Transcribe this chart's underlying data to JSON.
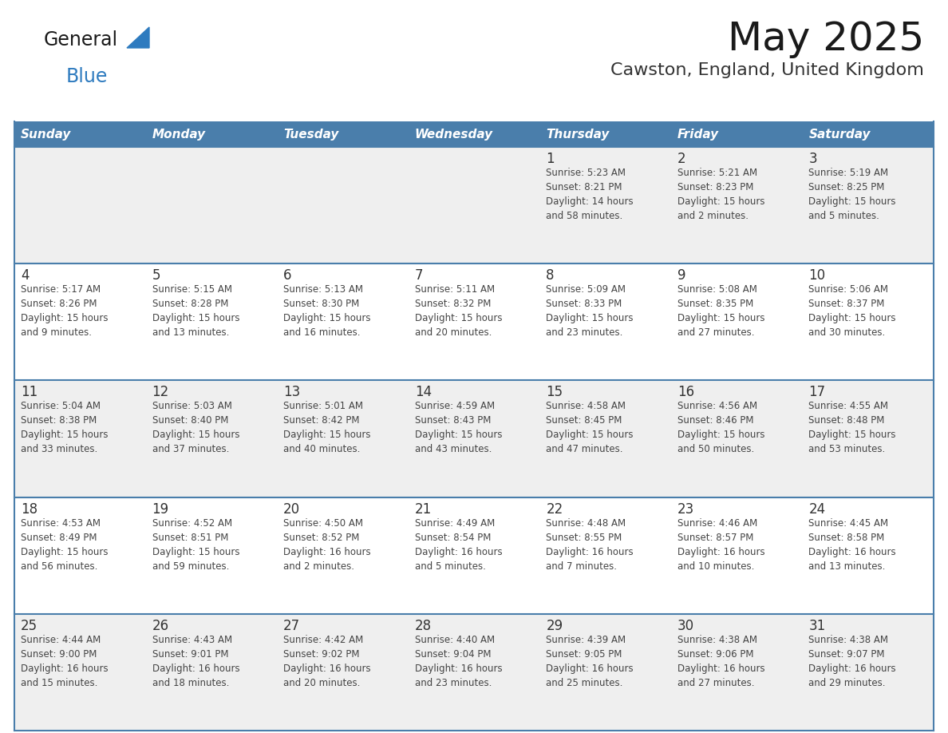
{
  "title": "May 2025",
  "subtitle": "Cawston, England, United Kingdom",
  "days_of_week": [
    "Sunday",
    "Monday",
    "Tuesday",
    "Wednesday",
    "Thursday",
    "Friday",
    "Saturday"
  ],
  "header_bg": "#4a7eab",
  "header_text_color": "#ffffff",
  "row_bg_odd": "#efefef",
  "row_bg_even": "#ffffff",
  "row_line_color": "#4a7eab",
  "day_number_color": "#333333",
  "cell_text_color": "#444444",
  "title_color": "#1a1a1a",
  "subtitle_color": "#333333",
  "logo_general_color": "#1a1a1a",
  "logo_blue_color": "#2e7bbf",
  "weeks": [
    [
      {
        "day": "",
        "info": ""
      },
      {
        "day": "",
        "info": ""
      },
      {
        "day": "",
        "info": ""
      },
      {
        "day": "",
        "info": ""
      },
      {
        "day": "1",
        "info": "Sunrise: 5:23 AM\nSunset: 8:21 PM\nDaylight: 14 hours\nand 58 minutes."
      },
      {
        "day": "2",
        "info": "Sunrise: 5:21 AM\nSunset: 8:23 PM\nDaylight: 15 hours\nand 2 minutes."
      },
      {
        "day": "3",
        "info": "Sunrise: 5:19 AM\nSunset: 8:25 PM\nDaylight: 15 hours\nand 5 minutes."
      }
    ],
    [
      {
        "day": "4",
        "info": "Sunrise: 5:17 AM\nSunset: 8:26 PM\nDaylight: 15 hours\nand 9 minutes."
      },
      {
        "day": "5",
        "info": "Sunrise: 5:15 AM\nSunset: 8:28 PM\nDaylight: 15 hours\nand 13 minutes."
      },
      {
        "day": "6",
        "info": "Sunrise: 5:13 AM\nSunset: 8:30 PM\nDaylight: 15 hours\nand 16 minutes."
      },
      {
        "day": "7",
        "info": "Sunrise: 5:11 AM\nSunset: 8:32 PM\nDaylight: 15 hours\nand 20 minutes."
      },
      {
        "day": "8",
        "info": "Sunrise: 5:09 AM\nSunset: 8:33 PM\nDaylight: 15 hours\nand 23 minutes."
      },
      {
        "day": "9",
        "info": "Sunrise: 5:08 AM\nSunset: 8:35 PM\nDaylight: 15 hours\nand 27 minutes."
      },
      {
        "day": "10",
        "info": "Sunrise: 5:06 AM\nSunset: 8:37 PM\nDaylight: 15 hours\nand 30 minutes."
      }
    ],
    [
      {
        "day": "11",
        "info": "Sunrise: 5:04 AM\nSunset: 8:38 PM\nDaylight: 15 hours\nand 33 minutes."
      },
      {
        "day": "12",
        "info": "Sunrise: 5:03 AM\nSunset: 8:40 PM\nDaylight: 15 hours\nand 37 minutes."
      },
      {
        "day": "13",
        "info": "Sunrise: 5:01 AM\nSunset: 8:42 PM\nDaylight: 15 hours\nand 40 minutes."
      },
      {
        "day": "14",
        "info": "Sunrise: 4:59 AM\nSunset: 8:43 PM\nDaylight: 15 hours\nand 43 minutes."
      },
      {
        "day": "15",
        "info": "Sunrise: 4:58 AM\nSunset: 8:45 PM\nDaylight: 15 hours\nand 47 minutes."
      },
      {
        "day": "16",
        "info": "Sunrise: 4:56 AM\nSunset: 8:46 PM\nDaylight: 15 hours\nand 50 minutes."
      },
      {
        "day": "17",
        "info": "Sunrise: 4:55 AM\nSunset: 8:48 PM\nDaylight: 15 hours\nand 53 minutes."
      }
    ],
    [
      {
        "day": "18",
        "info": "Sunrise: 4:53 AM\nSunset: 8:49 PM\nDaylight: 15 hours\nand 56 minutes."
      },
      {
        "day": "19",
        "info": "Sunrise: 4:52 AM\nSunset: 8:51 PM\nDaylight: 15 hours\nand 59 minutes."
      },
      {
        "day": "20",
        "info": "Sunrise: 4:50 AM\nSunset: 8:52 PM\nDaylight: 16 hours\nand 2 minutes."
      },
      {
        "day": "21",
        "info": "Sunrise: 4:49 AM\nSunset: 8:54 PM\nDaylight: 16 hours\nand 5 minutes."
      },
      {
        "day": "22",
        "info": "Sunrise: 4:48 AM\nSunset: 8:55 PM\nDaylight: 16 hours\nand 7 minutes."
      },
      {
        "day": "23",
        "info": "Sunrise: 4:46 AM\nSunset: 8:57 PM\nDaylight: 16 hours\nand 10 minutes."
      },
      {
        "day": "24",
        "info": "Sunrise: 4:45 AM\nSunset: 8:58 PM\nDaylight: 16 hours\nand 13 minutes."
      }
    ],
    [
      {
        "day": "25",
        "info": "Sunrise: 4:44 AM\nSunset: 9:00 PM\nDaylight: 16 hours\nand 15 minutes."
      },
      {
        "day": "26",
        "info": "Sunrise: 4:43 AM\nSunset: 9:01 PM\nDaylight: 16 hours\nand 18 minutes."
      },
      {
        "day": "27",
        "info": "Sunrise: 4:42 AM\nSunset: 9:02 PM\nDaylight: 16 hours\nand 20 minutes."
      },
      {
        "day": "28",
        "info": "Sunrise: 4:40 AM\nSunset: 9:04 PM\nDaylight: 16 hours\nand 23 minutes."
      },
      {
        "day": "29",
        "info": "Sunrise: 4:39 AM\nSunset: 9:05 PM\nDaylight: 16 hours\nand 25 minutes."
      },
      {
        "day": "30",
        "info": "Sunrise: 4:38 AM\nSunset: 9:06 PM\nDaylight: 16 hours\nand 27 minutes."
      },
      {
        "day": "31",
        "info": "Sunrise: 4:38 AM\nSunset: 9:07 PM\nDaylight: 16 hours\nand 29 minutes."
      }
    ]
  ]
}
